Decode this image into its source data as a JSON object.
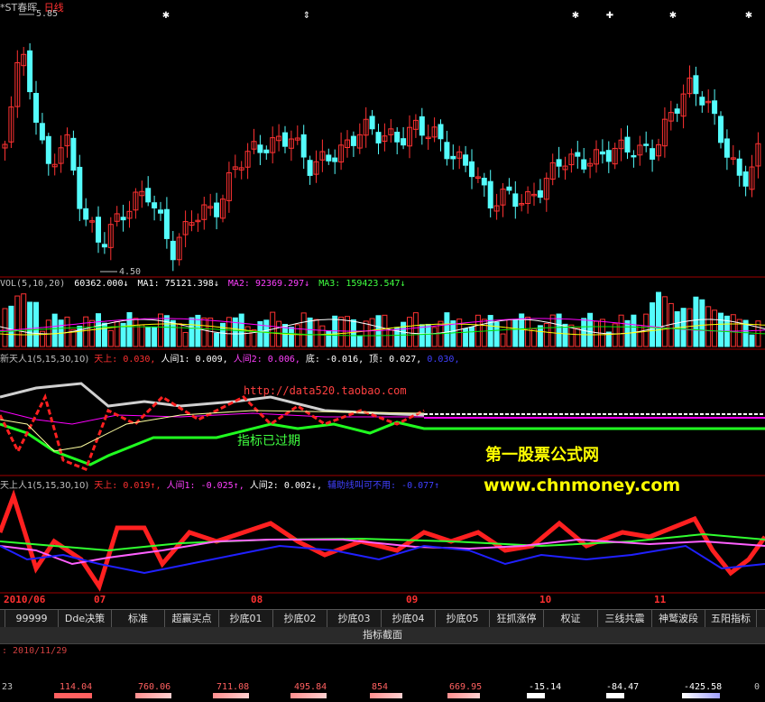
{
  "stock": {
    "name": "*ST春晖",
    "period": "日线",
    "high_label": "5.85",
    "low_label": "4.50"
  },
  "vol": {
    "title": "VOL(5,10,20)",
    "v": "60362.000↓",
    "ma1": "MA1: 75121.398↓",
    "ma2": "MA2: 92369.297↓",
    "ma3": "MA3: 159423.547↓"
  },
  "ind1": {
    "title": "新天人1(5,15,30,10)",
    "tianshang": "天上: 0.030,",
    "renjian1": "人间1: 0.009,",
    "renjian2": "人间2: 0.006,",
    "di": "底: -0.016,",
    "ding": "顶: 0.027,",
    "last": "0.030,",
    "url": "http://data520.taobao.com",
    "expired": "指标已过期"
  },
  "ind2": {
    "title": "天上人1(5,15,30,10)",
    "tianshang": "天上: 0.019↑,",
    "renjian1": "人间1: -0.025↑,",
    "renjian2": "人间2: 0.002↓,",
    "aux": "辅助线叫可不用: -0.077↑"
  },
  "watermark": {
    "name": "第一股票公式网",
    "url": "www.chnmoney.com"
  },
  "months": [
    "2010/06",
    "07",
    "08",
    "09",
    "10",
    "11"
  ],
  "tabs": [
    "99999",
    "Dde决策",
    "标准",
    "超赢买点",
    "抄底01",
    "抄底02",
    "抄底03",
    "抄底04",
    "抄底05",
    "狂抓涨停",
    "权证",
    "三线共震",
    "神鹫波段",
    "五阳指标"
  ],
  "indicator_bar": "指标截面",
  "date_line": ": 2010/11/29",
  "bottom_values": [
    "23",
    "114.04",
    "760.06",
    "711.08",
    "495.84",
    "854",
    "669.95",
    "-15.14",
    "-84.47",
    "-425.58",
    "0"
  ],
  "colors": {
    "up": "#ff3232",
    "down": "#54fcfc",
    "ma_white": "#ffffff",
    "ma_yellow": "#ffff00",
    "ma_magenta": "#ff00ff",
    "ma_green": "#00e600",
    "watermark": "#ffff00"
  }
}
